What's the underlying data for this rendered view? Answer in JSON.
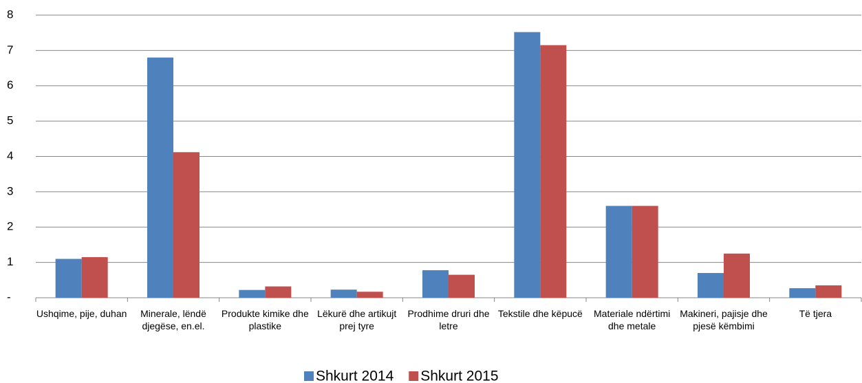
{
  "chart_data": {
    "type": "bar",
    "categories": [
      "Ushqime, pije, duhan",
      "Minerale, lëndë djegëse, en.el.",
      "Produkte kimike dhe plastike",
      "Lëkurë dhe artikujt prej tyre",
      "Prodhime druri dhe letre",
      "Tekstile dhe këpucë",
      "Materiale ndërtimi dhe metale",
      "Makineri, pajisje dhe pjesë këmbimi",
      "Të tjera"
    ],
    "series": [
      {
        "name": "Shkurt 2014",
        "color": "#4f81bd",
        "values": [
          1.1,
          6.8,
          0.22,
          0.23,
          0.78,
          7.52,
          2.6,
          0.7,
          0.27
        ]
      },
      {
        "name": "Shkurt 2015",
        "color": "#c0504d",
        "values": [
          1.15,
          4.12,
          0.32,
          0.17,
          0.65,
          7.15,
          2.6,
          1.25,
          0.35
        ]
      }
    ],
    "ylim": [
      0,
      8
    ],
    "yticks": [
      {
        "value": 0,
        "label": "-"
      },
      1,
      2,
      3,
      4,
      5,
      6,
      7,
      8
    ],
    "grid": true,
    "legend": "bottom"
  }
}
